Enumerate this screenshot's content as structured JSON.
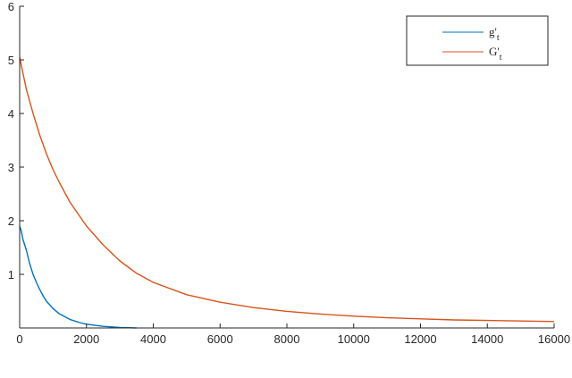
{
  "chart_data": {
    "type": "line",
    "title": "",
    "xlabel": "",
    "ylabel": "",
    "xlim": [
      0,
      16000
    ],
    "ylim": [
      0,
      6
    ],
    "xticks": [
      0,
      2000,
      4000,
      6000,
      8000,
      10000,
      12000,
      14000,
      16000
    ],
    "yticks": [
      1,
      2,
      3,
      4,
      5,
      6
    ],
    "xtick_labels": [
      "0",
      "2000",
      "4000",
      "6000",
      "8000",
      "10000",
      "12000",
      "14000",
      "16000"
    ],
    "ytick_labels": [
      "1",
      "2",
      "3",
      "4",
      "5",
      "6"
    ],
    "grid": false,
    "legend_position": "top-right",
    "series": [
      {
        "name": "g'_t",
        "color": "#0072BD",
        "x": [
          0,
          50,
          100,
          200,
          300,
          400,
          500,
          600,
          700,
          800,
          1000,
          1200,
          1500,
          1800,
          2000,
          2500,
          3000,
          3500
        ],
        "y": [
          1.9,
          1.8,
          1.65,
          1.45,
          1.2,
          1.0,
          0.85,
          0.72,
          0.6,
          0.5,
          0.36,
          0.26,
          0.16,
          0.1,
          0.07,
          0.03,
          0.01,
          0.0
        ]
      },
      {
        "name": "G'_t",
        "color": "#D95319",
        "x": [
          0,
          100,
          200,
          400,
          600,
          800,
          1000,
          1200,
          1500,
          2000,
          2500,
          3000,
          3500,
          4000,
          5000,
          6000,
          7000,
          8000,
          9000,
          10000,
          11000,
          12000,
          13000,
          14000,
          15000,
          16000
        ],
        "y": [
          5.05,
          4.75,
          4.45,
          4.0,
          3.6,
          3.25,
          2.95,
          2.7,
          2.35,
          1.9,
          1.55,
          1.25,
          1.02,
          0.85,
          0.62,
          0.48,
          0.38,
          0.31,
          0.26,
          0.22,
          0.19,
          0.17,
          0.15,
          0.14,
          0.13,
          0.12
        ]
      }
    ]
  },
  "legend": {
    "g_base": "g'",
    "g_sub": "t",
    "G_base": "G'",
    "G_sub": "t"
  }
}
